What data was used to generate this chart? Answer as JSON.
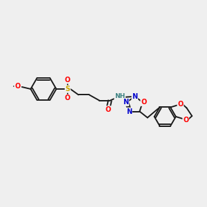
{
  "background_color": "#efefef",
  "bond_color": "#1a1a1a",
  "atom_colors": {
    "O": "#ff0000",
    "N": "#0000cc",
    "S": "#ccaa00",
    "H": "#3a8080",
    "C": "#1a1a1a"
  },
  "figsize": [
    3.0,
    3.0
  ],
  "dpi": 100,
  "xlim": [
    0,
    10
  ],
  "ylim": [
    0,
    10
  ]
}
